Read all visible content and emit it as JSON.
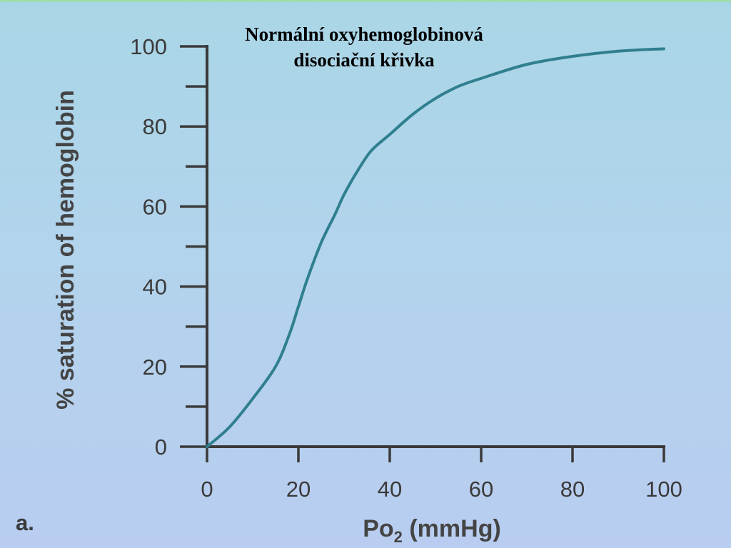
{
  "chart_data": {
    "type": "line",
    "title_line1": "Normální oxyhemoglobinová",
    "title_line2": "disociační křivka",
    "xlabel_main": "Po",
    "xlabel_sub": "2",
    "xlabel_rest": " (mmHg)",
    "ylabel": "% saturation of hemoglobin",
    "panel_label": "a.",
    "xlim": [
      0,
      100
    ],
    "ylim": [
      0,
      100
    ],
    "x_ticks": [
      0,
      20,
      40,
      60,
      80,
      100
    ],
    "y_ticks": [
      0,
      20,
      40,
      60,
      80,
      100
    ],
    "grid": false,
    "series": [
      {
        "color": "#2f7f8f",
        "points": [
          [
            0,
            0
          ],
          [
            5,
            5
          ],
          [
            10,
            12
          ],
          [
            15,
            20
          ],
          [
            18,
            28
          ],
          [
            20,
            35
          ],
          [
            22,
            42
          ],
          [
            25,
            51
          ],
          [
            28,
            58
          ],
          [
            30,
            63
          ],
          [
            33,
            69
          ],
          [
            36,
            74
          ],
          [
            40,
            78
          ],
          [
            45,
            83
          ],
          [
            50,
            87
          ],
          [
            55,
            90
          ],
          [
            60,
            92
          ],
          [
            70,
            95.5
          ],
          [
            80,
            97.5
          ],
          [
            90,
            98.8
          ],
          [
            100,
            99.4
          ]
        ]
      }
    ]
  }
}
